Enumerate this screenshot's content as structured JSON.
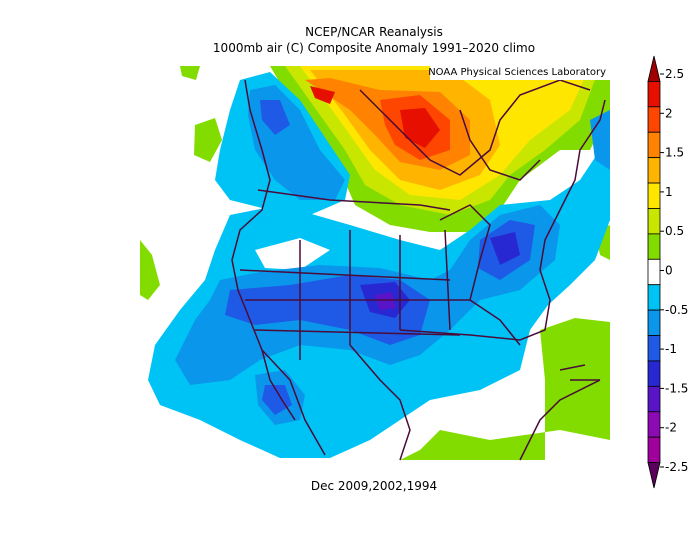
{
  "header": {
    "title": "NCEP/NCAR Reanalysis",
    "subtitle": "1000mb air (C) Composite Anomaly 1991–2020 climo"
  },
  "credit": "NOAA Physical Sciences Laboratory",
  "caption": "Dec 2009,2002,1994",
  "colorbar": {
    "ticks": [
      2.5,
      2,
      1.5,
      1,
      0.5,
      0,
      -0.5,
      -1,
      -1.5,
      -2,
      -2.5
    ],
    "colors": [
      "#a00000",
      "#e60f00",
      "#ff4600",
      "#ff8200",
      "#ffb400",
      "#ffe600",
      "#c8e600",
      "#82dc00",
      "#ffffff",
      "#00c3f5",
      "#0a96eb",
      "#1e5ae6",
      "#2828d2",
      "#5a14c8",
      "#8c0ab4",
      "#a0009b",
      "#5a005a"
    ]
  }
}
